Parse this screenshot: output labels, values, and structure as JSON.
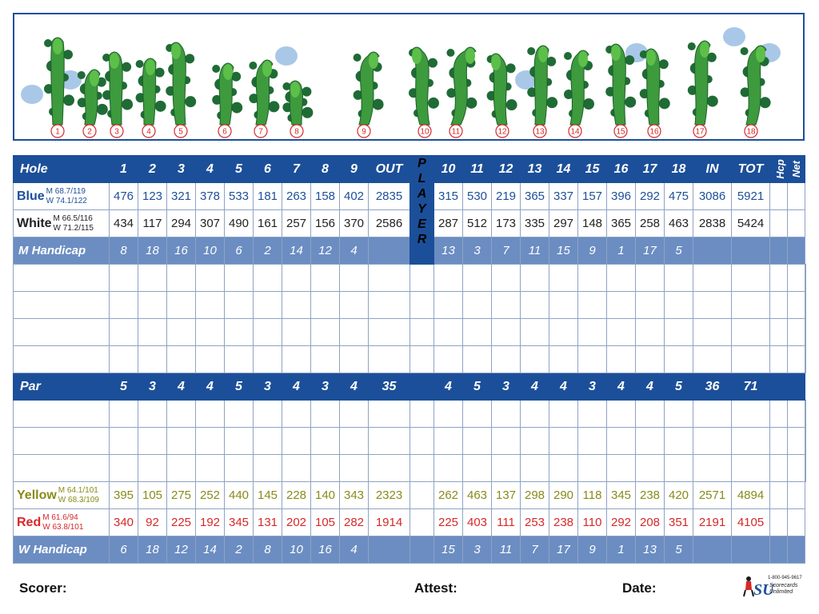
{
  "course_map": {
    "hole_numbers": [
      "1",
      "2",
      "3",
      "4",
      "5",
      "6",
      "7",
      "8",
      "9",
      "10",
      "11",
      "12",
      "13",
      "14",
      "15",
      "16",
      "17",
      "18"
    ],
    "accent_red": "#d62828",
    "fairway_green": "#3d9a3d",
    "tree_green": "#1f6b35",
    "water_blue": "#a9c8e8"
  },
  "header": {
    "hole_label": "Hole",
    "front_holes": [
      "1",
      "2",
      "3",
      "4",
      "5",
      "6",
      "7",
      "8",
      "9"
    ],
    "out_label": "OUT",
    "player_letters": [
      "P",
      "L",
      "A",
      "Y",
      "E",
      "R"
    ],
    "back_holes": [
      "10",
      "11",
      "12",
      "13",
      "14",
      "15",
      "16",
      "17",
      "18"
    ],
    "in_label": "IN",
    "tot_label": "TOT",
    "hcp_label": "Hcp",
    "net_label": "Net"
  },
  "tees": [
    {
      "name": "Blue",
      "rating_m": "M 68.7/119",
      "rating_w": "W 74.1/122",
      "front": [
        "476",
        "123",
        "321",
        "378",
        "533",
        "181",
        "263",
        "158",
        "402"
      ],
      "out": "2835",
      "back": [
        "315",
        "530",
        "219",
        "365",
        "337",
        "157",
        "396",
        "292",
        "475"
      ],
      "in": "3086",
      "tot": "5921"
    },
    {
      "name": "White",
      "rating_m": "M 66.5/116",
      "rating_w": "W 71.2/115",
      "front": [
        "434",
        "117",
        "294",
        "307",
        "490",
        "161",
        "257",
        "156",
        "370"
      ],
      "out": "2586",
      "back": [
        "287",
        "512",
        "173",
        "335",
        "297",
        "148",
        "365",
        "258",
        "463"
      ],
      "in": "2838",
      "tot": "5424"
    }
  ],
  "m_handicap": {
    "label": "M Handicap",
    "front": [
      "8",
      "18",
      "16",
      "10",
      "6",
      "2",
      "14",
      "12",
      "4"
    ],
    "back": [
      "13",
      "3",
      "7",
      "11",
      "15",
      "9",
      "1",
      "17",
      "5"
    ]
  },
  "par": {
    "label": "Par",
    "front": [
      "5",
      "3",
      "4",
      "4",
      "5",
      "3",
      "4",
      "3",
      "4"
    ],
    "out": "35",
    "back": [
      "4",
      "5",
      "3",
      "4",
      "4",
      "3",
      "4",
      "4",
      "5"
    ],
    "in": "36",
    "tot": "71"
  },
  "lower_tees": [
    {
      "name": "Yellow",
      "rating_m": "M 64.1/101",
      "rating_w": "W 68.3/109",
      "front": [
        "395",
        "105",
        "275",
        "252",
        "440",
        "145",
        "228",
        "140",
        "343"
      ],
      "out": "2323",
      "back": [
        "262",
        "463",
        "137",
        "298",
        "290",
        "118",
        "345",
        "238",
        "420"
      ],
      "in": "2571",
      "tot": "4894"
    },
    {
      "name": "Red",
      "rating_m": "M 61.6/94",
      "rating_w": "W 63.8/101",
      "front": [
        "340",
        "92",
        "225",
        "192",
        "345",
        "131",
        "202",
        "105",
        "282"
      ],
      "out": "1914",
      "back": [
        "225",
        "403",
        "111",
        "253",
        "238",
        "110",
        "292",
        "208",
        "351"
      ],
      "in": "2191",
      "tot": "4105"
    }
  ],
  "w_handicap": {
    "label": "W Handicap",
    "front": [
      "6",
      "18",
      "12",
      "14",
      "2",
      "8",
      "10",
      "16",
      "4"
    ],
    "back": [
      "15",
      "3",
      "11",
      "7",
      "17",
      "9",
      "1",
      "13",
      "5"
    ]
  },
  "footer": {
    "scorer_label": "Scorer:",
    "attest_label": "Attest:",
    "date_label": "Date:",
    "logo_phone": "1-800-945-9617",
    "logo_line1": "Scorecards",
    "logo_line2": "Unlimited",
    "logo_letters": "SU"
  }
}
